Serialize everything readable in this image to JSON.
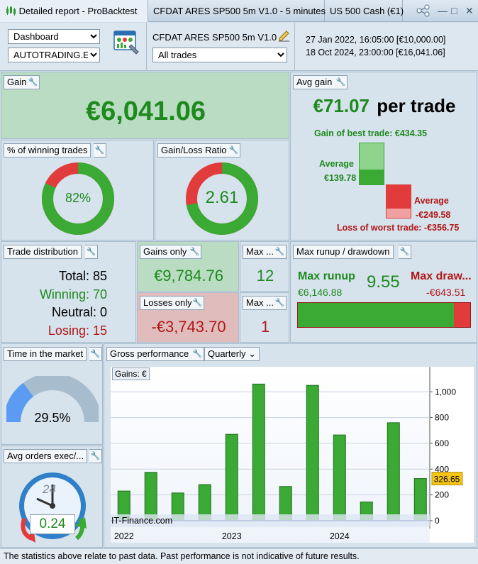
{
  "titlebar": {
    "tab1": "Detailed report - ProBacktest",
    "tab2": "CFDAT ARES SP500 5m V1.0 - 5 minutes",
    "tab3": "US 500 Cash (€1)"
  },
  "toolbar": {
    "view_select": "Dashboard",
    "account_select": "AUTOTRADING.EE",
    "system_name": "CFDAT ARES SP500 5m V1.0",
    "trades_select": "All trades",
    "start": "27 Jan 2022, 16:05:00  [€10,000.00]",
    "end": "18 Oct 2024, 23:00:00  [€16,041.06]"
  },
  "gain": {
    "label": "Gain",
    "value": "€6,041.06"
  },
  "avg_gain": {
    "label": "Avg gain",
    "value": "€71.07",
    "suffix": "per trade",
    "best": "Gain of best trade: €434.35",
    "avg_pos_label": "Average",
    "avg_pos_value": "€139.78",
    "avg_neg_label": "Average",
    "avg_neg_value": "-€249.58",
    "worst": "Loss of worst trade: -€356.75"
  },
  "winning_pct": {
    "label": "% of winning trades",
    "value": "82%",
    "fraction": 0.82
  },
  "gl_ratio": {
    "label": "Gain/Loss Ratio",
    "value": "2.61",
    "fraction": 0.72
  },
  "distribution": {
    "label": "Trade distribution",
    "total": "Total: 85",
    "winning": "Winning: 70",
    "neutral": "Neutral: 0",
    "losing": "Losing: 15"
  },
  "gains_only": {
    "label": "Gains only",
    "value": "€9,784.76"
  },
  "losses_only": {
    "label": "Losses only",
    "value": "-€3,743.70"
  },
  "max_wins": {
    "label": "Max ...",
    "value": "12"
  },
  "max_losses": {
    "label": "Max ...",
    "value": "1"
  },
  "runup": {
    "label": "Max runup / drawdown",
    "runup_label": "Max runup",
    "runup_value": "€6,146.88",
    "ratio": "9.55",
    "drawdown_label": "Max draw...",
    "drawdown_value": "-€643.51",
    "runup_fraction": 0.905
  },
  "time_market": {
    "label": "Time in the market",
    "value": "29.5%",
    "fraction": 0.295
  },
  "avg_orders": {
    "label": "Avg orders exec/...",
    "value": "0.24",
    "clock": "24"
  },
  "gross_perf": {
    "label": "Gross performance",
    "period": "Quarterly"
  },
  "chart_data": {
    "type": "bar",
    "legend": "Gains: €",
    "watermark": "IT-Finance.com",
    "categories": [
      "2022 Q1",
      "2022 Q2",
      "2022 Q3",
      "2022 Q4",
      "2023 Q1",
      "2023 Q2",
      "2023 Q3",
      "2023 Q4",
      "2024 Q1",
      "2024 Q2",
      "2024 Q3",
      "2024 Q4"
    ],
    "values": [
      230,
      375,
      215,
      280,
      670,
      1060,
      265,
      1050,
      665,
      145,
      760,
      326.65
    ],
    "ylim": [
      -50,
      1150
    ],
    "yticks": [
      0,
      200,
      400,
      600,
      800,
      1000
    ],
    "ytick_labels": [
      "0",
      "200",
      "400",
      "600",
      "800",
      "1,000"
    ],
    "xtick_labels": [
      "2022",
      "2023",
      "2024"
    ],
    "last_value_label": "326.65",
    "bar_color": "#3aaa35"
  },
  "footer": "The statistics above relate to past data. Past performance is not indicative of future results."
}
